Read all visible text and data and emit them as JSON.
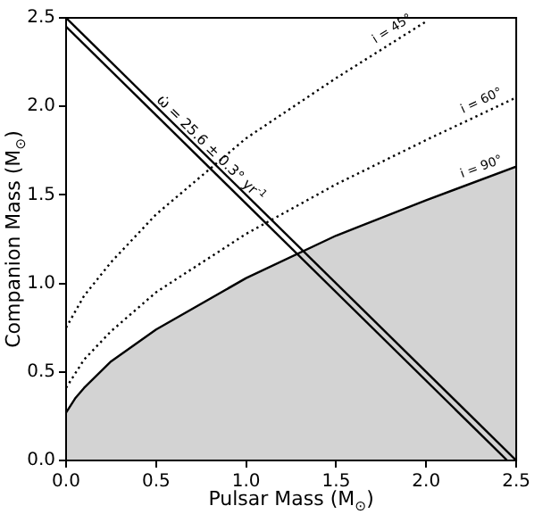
{
  "chart_data": {
    "type": "line",
    "xlabel": "Pulsar Mass (M$_{⊙}$)",
    "ylabel": "Companion Mass (M$_{⊙}$)",
    "xlim": [
      0,
      2.5
    ],
    "ylim": [
      0,
      2.5
    ],
    "xticks": [
      {
        "value": 0,
        "label": "0.0"
      },
      {
        "value": 0.5,
        "label": "0.5"
      },
      {
        "value": 1,
        "label": "1.0"
      },
      {
        "value": 1.5,
        "label": "1.5"
      },
      {
        "value": 2,
        "label": "2.0"
      },
      {
        "value": 2.5,
        "label": "2.5"
      }
    ],
    "yticks": [
      {
        "value": 0,
        "label": "0.0"
      },
      {
        "value": 0.5,
        "label": "0.5"
      },
      {
        "value": 1,
        "label": "1.0"
      },
      {
        "value": 1.5,
        "label": "1.5"
      },
      {
        "value": 2,
        "label": "2.0"
      },
      {
        "value": 2.5,
        "label": "2.5"
      }
    ],
    "grid": false,
    "legend": false,
    "marker": "none",
    "series": [
      {
        "type": "line",
        "color": "#000000",
        "line_style": "solid",
        "x": [
          0,
          2.5
        ],
        "values": [
          2.5,
          0
        ]
      },
      {
        "type": "line",
        "color": "#000000",
        "line_style": "solid",
        "x": [
          0,
          2.45
        ],
        "values": [
          2.45,
          0
        ]
      },
      {
        "type": "line",
        "name": "i = 45°",
        "color": "#000000",
        "line_style": "dotted",
        "x": [
          0,
          0.1,
          0.25,
          0.5,
          1,
          1.5,
          2
        ],
        "values": [
          0.75,
          0.93,
          1.12,
          1.39,
          1.82,
          2.16,
          2.48
        ]
      },
      {
        "type": "line",
        "name": "i = 60°",
        "color": "#000000",
        "line_style": "dotted",
        "x": [
          0,
          0.1,
          0.25,
          0.5,
          1,
          1.5,
          2,
          2.5
        ],
        "values": [
          0.41,
          0.57,
          0.73,
          0.95,
          1.28,
          1.56,
          1.81,
          2.05
        ]
      },
      {
        "type": "area",
        "name": "i = 90°",
        "color": "#000000",
        "line_style": "solid",
        "x": [
          0,
          0.05,
          0.1,
          0.25,
          0.5,
          1,
          1.5,
          2,
          2.5
        ],
        "values": [
          0.27,
          0.35,
          0.41,
          0.56,
          0.74,
          1.03,
          1.27,
          1.47,
          1.66
        ]
      }
    ],
    "annotations": [
      {
        "text": "ω̇ = 25.6 ± 0.3° yr$^{-1}$",
        "x": 0.8,
        "y": 1.76
      }
    ]
  }
}
